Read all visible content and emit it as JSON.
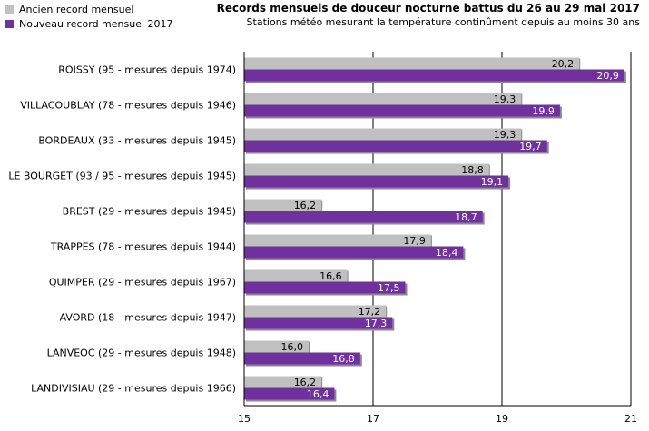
{
  "chart_data": {
    "type": "bar",
    "orientation": "horizontal",
    "title": "Records mensuels de douceur nocturne battus du 26 au 29 mai 2017",
    "subtitle": "Stations météo mesurant la température continûment depuis au moins 30 ans",
    "categories": [
      "ROISSY (95 - mesures depuis 1974)",
      "VILLACOUBLAY (78 - mesures depuis 1946)",
      "BORDEAUX (33 - mesures depuis 1945)",
      "LE BOURGET (93 / 95 - mesures depuis 1945)",
      "BREST (29 - mesures depuis 1945)",
      "TRAPPES (78 - mesures depuis 1944)",
      "QUIMPER (29 - mesures depuis 1967)",
      "AVORD (18 - mesures depuis 1947)",
      "LANVEOC (29 - mesures depuis 1948)",
      "LANDIVISIAU (29 - mesures depuis 1966)"
    ],
    "series": [
      {
        "name": "Ancien record mensuel",
        "color": "#c0c0c0",
        "values": [
          20.2,
          19.3,
          19.3,
          18.8,
          16.2,
          17.9,
          16.6,
          17.2,
          16.0,
          16.2
        ],
        "labels": [
          "20,2",
          "19,3",
          "19,3",
          "18,8",
          "16,2",
          "17,9",
          "16,6",
          "17,2",
          "16,0",
          "16,2"
        ]
      },
      {
        "name": "Nouveau record mensuel 2017",
        "color": "#7030a0",
        "values": [
          20.9,
          19.9,
          19.7,
          19.1,
          18.7,
          18.4,
          17.5,
          17.3,
          16.8,
          16.4
        ],
        "labels": [
          "20,9",
          "19,9",
          "19,7",
          "19,1",
          "18,7",
          "18,4",
          "17,5",
          "17,3",
          "16,8",
          "16,4"
        ]
      }
    ],
    "xlim": [
      15,
      21
    ],
    "ticks": [
      15,
      17,
      19,
      21
    ],
    "grid": true,
    "legend_position": "top-left"
  }
}
